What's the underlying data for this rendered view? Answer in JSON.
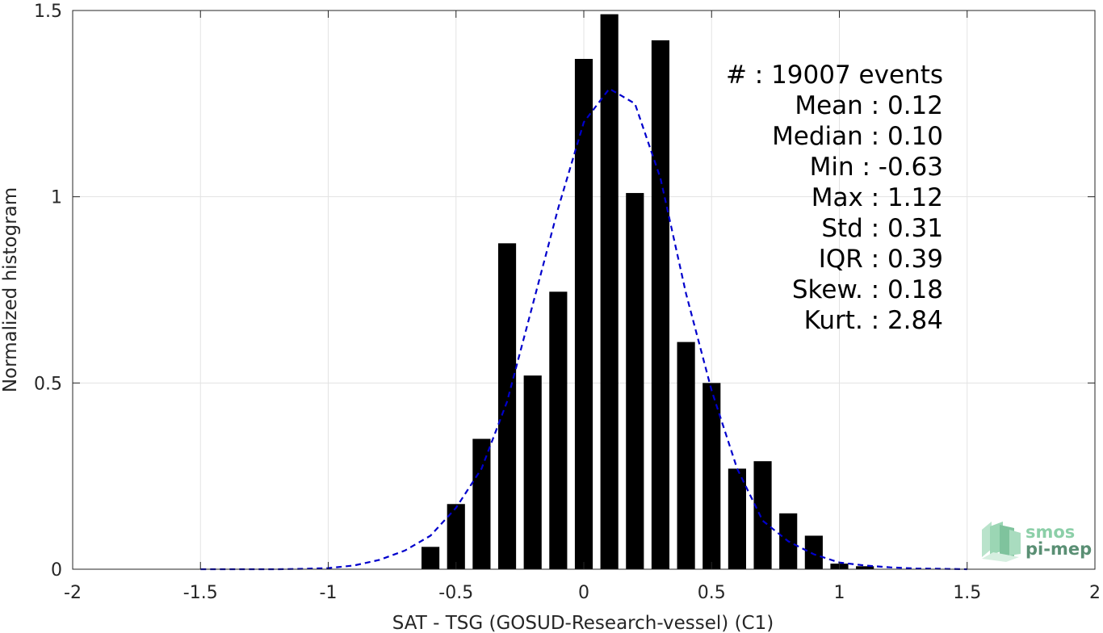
{
  "chart_data": {
    "type": "bar",
    "xlabel": "SAT - TSG (GOSUD-Research-vessel) (C1)",
    "ylabel": "Normalized histogram",
    "xlim": [
      -2,
      2
    ],
    "ylim": [
      0,
      1.5
    ],
    "grid": true,
    "x_ticks": [
      -2,
      -1.5,
      -1,
      -0.5,
      0,
      0.5,
      1,
      1.5,
      2
    ],
    "x_tick_labels": [
      "-2",
      "-1.5",
      "-1",
      "-0.5",
      "0",
      "0.5",
      "1",
      "1.5",
      "2"
    ],
    "y_ticks": [
      0,
      0.5,
      1,
      1.5
    ],
    "y_tick_labels": [
      "0",
      "0.5",
      "1",
      "1.5"
    ],
    "bar_width": 0.07,
    "bar_color": "#000000",
    "bars": {
      "x": [
        -0.6,
        -0.5,
        -0.4,
        -0.3,
        -0.2,
        -0.1,
        0.0,
        0.1,
        0.2,
        0.3,
        0.4,
        0.5,
        0.6,
        0.7,
        0.8,
        0.9,
        1.0,
        1.1
      ],
      "values": [
        0.06,
        0.175,
        0.35,
        0.875,
        0.52,
        0.745,
        1.37,
        1.49,
        1.01,
        1.42,
        0.61,
        0.5,
        0.27,
        0.29,
        0.15,
        0.09,
        0.015,
        0.008
      ]
    },
    "fit_curve": {
      "style": "dashed",
      "color": "#0000cc",
      "x": [
        -1.5,
        -1.4,
        -1.3,
        -1.2,
        -1.1,
        -1.0,
        -0.9,
        -0.8,
        -0.7,
        -0.6,
        -0.5,
        -0.4,
        -0.3,
        -0.2,
        -0.1,
        0.0,
        0.1,
        0.15,
        0.2,
        0.3,
        0.4,
        0.5,
        0.6,
        0.7,
        0.8,
        0.9,
        1.0,
        1.1,
        1.2,
        1.3,
        1.4,
        1.5
      ],
      "y": [
        0.0,
        0.0,
        0.0,
        0.0,
        0.001,
        0.003,
        0.01,
        0.025,
        0.05,
        0.09,
        0.165,
        0.27,
        0.45,
        0.71,
        0.97,
        1.2,
        1.29,
        1.27,
        1.25,
        1.05,
        0.74,
        0.48,
        0.27,
        0.13,
        0.075,
        0.04,
        0.018,
        0.01,
        0.005,
        0.002,
        0.001,
        0.0
      ]
    },
    "stats": [
      "#  : 19007 events",
      "Mean : 0.12",
      "Median : 0.10",
      "Min : -0.63",
      "Max : 1.12",
      "Std : 0.31",
      "IQR : 0.39",
      "Skew. : 0.18",
      "Kurt. : 2.84"
    ]
  },
  "logo": {
    "line1": "smos",
    "line2": "pi-mep",
    "color_light": "#8ccfa8",
    "color_dark": "#5a8f74"
  }
}
